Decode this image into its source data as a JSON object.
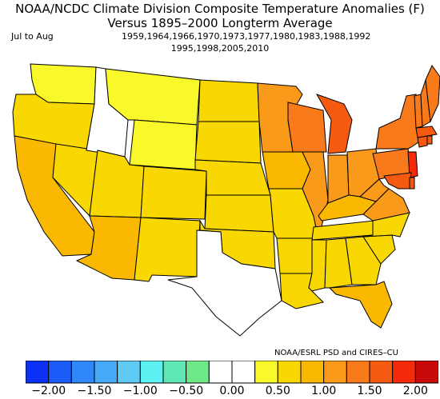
{
  "title_line1": "NOAA/NCDC Climate Division Composite Temperature Anomalies (F)",
  "title_line2": "Versus 1895–2000 Longterm Average",
  "period": "Jul to Aug",
  "years_line1": "1959,1964,1966,1970,1973,1977,1980,1983,1988,1992",
  "years_line2": "1995,1998,2005,2010",
  "credit": "NOAA/ESRL PSD and CIRES–CU",
  "colorbar": {
    "colors": [
      "#0a31f5",
      "#1b5cf9",
      "#2f87f9",
      "#46aaf9",
      "#5fcbf5",
      "#5ef1f1",
      "#5fe8b5",
      "#6fe88a",
      "#ffffff",
      "#ffffff",
      "#f8f82a",
      "#f8d800",
      "#fab800",
      "#fa9a1a",
      "#f87a1a",
      "#f55a10",
      "#f52a0a",
      "#c80a0a"
    ],
    "tick_labels": [
      "−2.00",
      "−1.50",
      "−1.00",
      "−0.50",
      "0.00",
      "0.50",
      "1.00",
      "1.50",
      "2.00"
    ]
  },
  "chart_data": {
    "type": "choropleth",
    "title": "NOAA/NCDC Climate Division Composite Temperature Anomalies (F)",
    "subtitle": "Versus 1895–2000 Longterm Average",
    "period": "Jul to Aug",
    "units": "F",
    "scale_range": [
      -2.0,
      2.0
    ],
    "regions": [
      {
        "name": "Washington",
        "value": 0.3
      },
      {
        "name": "Oregon",
        "value": 0.7
      },
      {
        "name": "California",
        "value": 0.8
      },
      {
        "name": "Nevada",
        "value": 0.7
      },
      {
        "name": "Idaho",
        "value": 0.2
      },
      {
        "name": "Montana",
        "value": 0.3
      },
      {
        "name": "Wyoming",
        "value": 0.4
      },
      {
        "name": "Utah",
        "value": 0.7
      },
      {
        "name": "Arizona",
        "value": 0.8
      },
      {
        "name": "Colorado",
        "value": 0.6
      },
      {
        "name": "New Mexico",
        "value": 0.6
      },
      {
        "name": "North Dakota",
        "value": 0.6
      },
      {
        "name": "South Dakota",
        "value": 0.6
      },
      {
        "name": "Nebraska",
        "value": 0.5
      },
      {
        "name": "Kansas",
        "value": 0.6
      },
      {
        "name": "Oklahoma",
        "value": 0.5
      },
      {
        "name": "Texas",
        "value": 0.2
      },
      {
        "name": "Minnesota",
        "value": 1.1
      },
      {
        "name": "Iowa",
        "value": 0.8
      },
      {
        "name": "Missouri",
        "value": 0.7
      },
      {
        "name": "Arkansas",
        "value": 0.5
      },
      {
        "name": "Louisiana",
        "value": 0.6
      },
      {
        "name": "Wisconsin",
        "value": 1.3
      },
      {
        "name": "Illinois",
        "value": 1.0
      },
      {
        "name": "Michigan",
        "value": 1.5
      },
      {
        "name": "Indiana",
        "value": 1.1
      },
      {
        "name": "Ohio",
        "value": 1.2
      },
      {
        "name": "Kentucky",
        "value": 0.8
      },
      {
        "name": "Tennessee",
        "value": 0.7
      },
      {
        "name": "Mississippi",
        "value": 0.5
      },
      {
        "name": "Alabama",
        "value": 0.6
      },
      {
        "name": "Georgia",
        "value": 0.7
      },
      {
        "name": "Florida",
        "value": 0.8
      },
      {
        "name": "South Carolina",
        "value": 0.7
      },
      {
        "name": "North Carolina",
        "value": 0.7
      },
      {
        "name": "Virginia",
        "value": 1.0
      },
      {
        "name": "West Virginia",
        "value": 1.1
      },
      {
        "name": "Pennsylvania",
        "value": 1.4
      },
      {
        "name": "New York",
        "value": 1.4
      },
      {
        "name": "New Jersey",
        "value": 1.8
      },
      {
        "name": "Maryland",
        "value": 1.6
      },
      {
        "name": "Delaware",
        "value": 1.6
      },
      {
        "name": "Connecticut",
        "value": 1.6
      },
      {
        "name": "Rhode Island",
        "value": 1.5
      },
      {
        "name": "Massachusetts",
        "value": 1.5
      },
      {
        "name": "Vermont",
        "value": 1.4
      },
      {
        "name": "New Hampshire",
        "value": 1.4
      },
      {
        "name": "Maine",
        "value": 1.3
      }
    ]
  }
}
